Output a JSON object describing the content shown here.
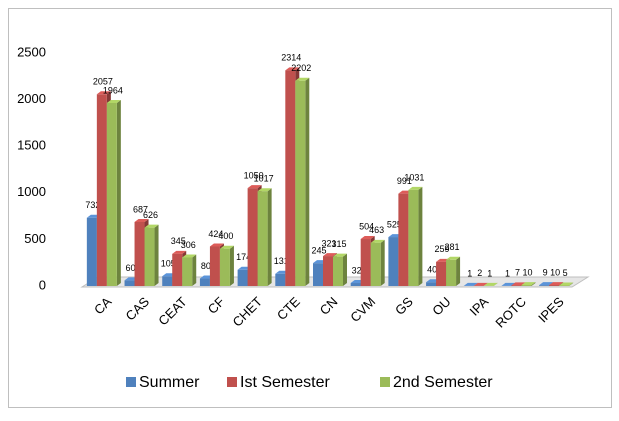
{
  "chart_data": {
    "type": "bar3d",
    "categories": [
      "CA",
      "CAS",
      "CEAT",
      "CF",
      "CHET",
      "CTE",
      "CN",
      "CVM",
      "GS",
      "OU",
      "IPA",
      "ROTC",
      "IPES"
    ],
    "series": [
      {
        "name": "Summer",
        "color": "#4f81bd",
        "values": [
          732,
          60,
          105,
          80,
          174,
          131,
          245,
          32,
          525,
          40,
          1,
          1,
          9
        ]
      },
      {
        "name": "Ist Semester",
        "color": "#c0504d",
        "values": [
          2057,
          687,
          345,
          424,
          1050,
          2314,
          321,
          504,
          991,
          259,
          2,
          7,
          10
        ]
      },
      {
        "name": "2nd Semester",
        "color": "#9bbb59",
        "values": [
          1964,
          626,
          306,
          400,
          1017,
          2202,
          315,
          463,
          1031,
          281,
          1,
          10,
          5
        ]
      }
    ],
    "ylim": [
      0,
      2500
    ],
    "yticks": [
      0,
      500,
      1000,
      1500,
      2000,
      2500
    ],
    "grid": false,
    "legend": "bottom"
  }
}
